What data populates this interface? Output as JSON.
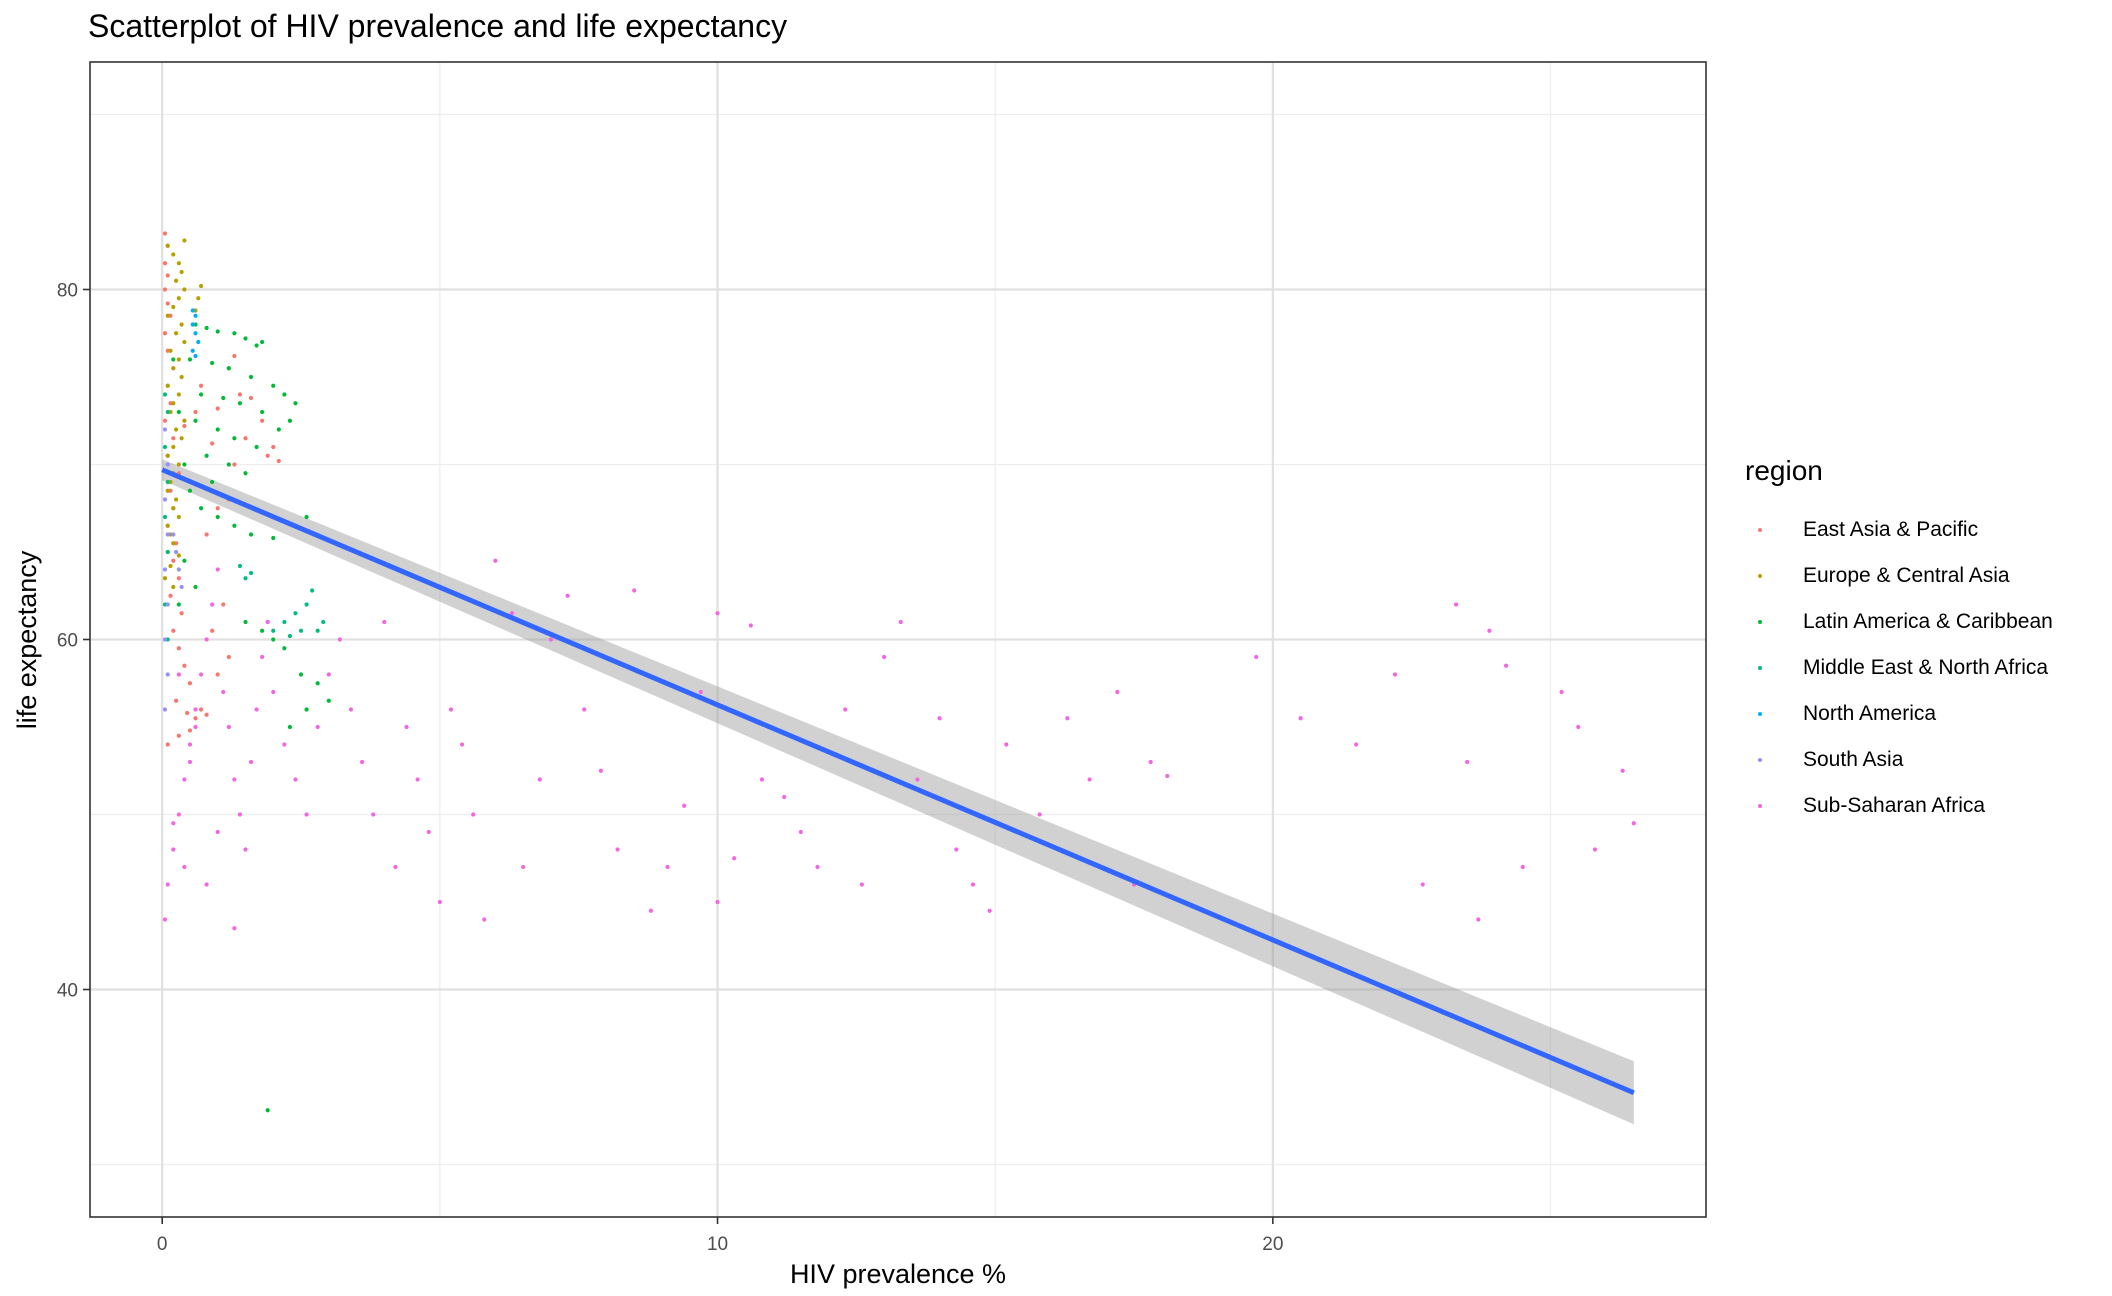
{
  "chart_data": {
    "type": "scatter",
    "title": "Scatterplot of HIV prevalence and life expectancy",
    "xlabel": "HIV prevalence %",
    "ylabel": "life expectancy",
    "xlim": [
      -1.3,
      27.8
    ],
    "ylim": [
      27,
      93
    ],
    "x_ticks": [
      0,
      10,
      20
    ],
    "y_ticks": [
      40,
      60,
      80
    ],
    "grid": true,
    "legend_title": "region",
    "legend_position": "right",
    "series": [
      {
        "name": "East Asia & Pacific",
        "color": "#F8766D",
        "points": [
          [
            0.05,
            83.2
          ],
          [
            0.1,
            82.5
          ],
          [
            0.05,
            81.5
          ],
          [
            0.1,
            80.8
          ],
          [
            0.05,
            80
          ],
          [
            0.1,
            79.2
          ],
          [
            0.15,
            78.5
          ],
          [
            0.05,
            77.5
          ],
          [
            0.1,
            76.5
          ],
          [
            0.2,
            75.5
          ],
          [
            0.1,
            74.5
          ],
          [
            0.15,
            73.5
          ],
          [
            0.05,
            72.5
          ],
          [
            0.2,
            71.5
          ],
          [
            0.1,
            70.5
          ],
          [
            0.3,
            69.5
          ],
          [
            0.15,
            68.5
          ],
          [
            0.2,
            67.5
          ],
          [
            0.1,
            66.5
          ],
          [
            0.25,
            65.5
          ],
          [
            0.2,
            64.5
          ],
          [
            0.3,
            63.5
          ],
          [
            0.15,
            62.5
          ],
          [
            0.35,
            61.5
          ],
          [
            0.2,
            60.5
          ],
          [
            0.3,
            59.5
          ],
          [
            0.4,
            58.5
          ],
          [
            0.5,
            57.5
          ],
          [
            0.25,
            56.5
          ],
          [
            0.45,
            55.8
          ],
          [
            0.6,
            55.5
          ],
          [
            0.7,
            56
          ],
          [
            0.8,
            55.7
          ],
          [
            0.3,
            54.5
          ],
          [
            0.1,
            54
          ],
          [
            0.5,
            54.8
          ],
          [
            1.0,
            58
          ],
          [
            1.2,
            59
          ],
          [
            0.9,
            60.5
          ],
          [
            1.1,
            62
          ],
          [
            0.8,
            66
          ],
          [
            1.0,
            67.5
          ],
          [
            1.2,
            68
          ],
          [
            1.3,
            70
          ],
          [
            1.5,
            71.5
          ],
          [
            1.8,
            72.5
          ],
          [
            1.9,
            70.5
          ],
          [
            2.0,
            71
          ],
          [
            2.1,
            70.2
          ],
          [
            1.4,
            74
          ],
          [
            1.2,
            75.5
          ],
          [
            1.3,
            76.2
          ],
          [
            1.0,
            73.2
          ],
          [
            1.6,
            73.8
          ],
          [
            0.7,
            74.5
          ],
          [
            0.6,
            73
          ],
          [
            0.4,
            72.2
          ],
          [
            0.9,
            71.2
          ]
        ]
      },
      {
        "name": "Europe & Central Asia",
        "color": "#B79F00",
        "points": [
          [
            0.1,
            82.5
          ],
          [
            0.2,
            82
          ],
          [
            0.3,
            81.5
          ],
          [
            0.4,
            82.8
          ],
          [
            0.35,
            81
          ],
          [
            0.25,
            80.5
          ],
          [
            0.4,
            80
          ],
          [
            0.3,
            79.5
          ],
          [
            0.2,
            79
          ],
          [
            0.1,
            78.5
          ],
          [
            0.35,
            78
          ],
          [
            0.25,
            77.5
          ],
          [
            0.4,
            77
          ],
          [
            0.15,
            76.5
          ],
          [
            0.3,
            76
          ],
          [
            0.2,
            75.5
          ],
          [
            0.35,
            75
          ],
          [
            0.1,
            74.5
          ],
          [
            0.3,
            74
          ],
          [
            0.2,
            73.5
          ],
          [
            0.15,
            73
          ],
          [
            0.4,
            72.5
          ],
          [
            0.25,
            72
          ],
          [
            0.35,
            71.5
          ],
          [
            0.2,
            71
          ],
          [
            0.1,
            70.5
          ],
          [
            0.3,
            70
          ],
          [
            0.2,
            69.5
          ],
          [
            0.15,
            69
          ],
          [
            0.1,
            68.5
          ],
          [
            0.25,
            68
          ],
          [
            0.2,
            67.5
          ],
          [
            0.3,
            67
          ],
          [
            0.1,
            66.5
          ],
          [
            0.15,
            66
          ],
          [
            0.2,
            65.5
          ],
          [
            0.1,
            65
          ],
          [
            0.3,
            64.8
          ],
          [
            0.15,
            64.2
          ],
          [
            0.05,
            63.5
          ],
          [
            0.2,
            63
          ],
          [
            0.7,
            80.2
          ],
          [
            0.65,
            79.5
          ],
          [
            0.6,
            78.8
          ]
        ]
      },
      {
        "name": "Latin America & Caribbean",
        "color": "#00BA38",
        "points": [
          [
            0.6,
            78
          ],
          [
            0.8,
            77.8
          ],
          [
            1.0,
            77.6
          ],
          [
            1.3,
            77.5
          ],
          [
            1.5,
            77.2
          ],
          [
            1.7,
            76.8
          ],
          [
            1.8,
            77
          ],
          [
            0.5,
            76
          ],
          [
            0.9,
            75.8
          ],
          [
            1.2,
            75.5
          ],
          [
            1.6,
            75
          ],
          [
            2.0,
            74.5
          ],
          [
            2.2,
            74
          ],
          [
            2.4,
            73.5
          ],
          [
            2.3,
            72.5
          ],
          [
            2.1,
            72
          ],
          [
            0.7,
            74
          ],
          [
            1.1,
            73.8
          ],
          [
            1.4,
            73.5
          ],
          [
            1.8,
            73
          ],
          [
            0.6,
            72.5
          ],
          [
            1.0,
            72
          ],
          [
            1.3,
            71.5
          ],
          [
            1.7,
            71
          ],
          [
            0.8,
            70.5
          ],
          [
            1.2,
            70
          ],
          [
            1.5,
            69.5
          ],
          [
            0.9,
            69
          ],
          [
            0.5,
            68.5
          ],
          [
            0.7,
            67.5
          ],
          [
            1.0,
            67
          ],
          [
            1.3,
            66.5
          ],
          [
            1.6,
            66
          ],
          [
            2.0,
            65.8
          ],
          [
            2.4,
            66.5
          ],
          [
            2.6,
            67
          ],
          [
            0.4,
            64.5
          ],
          [
            0.6,
            63
          ],
          [
            0.3,
            62
          ],
          [
            1.5,
            61
          ],
          [
            1.8,
            60.5
          ],
          [
            2.0,
            60
          ],
          [
            2.2,
            59.5
          ],
          [
            2.5,
            58
          ],
          [
            2.8,
            57.5
          ],
          [
            3.0,
            56.5
          ],
          [
            2.6,
            56
          ],
          [
            2.3,
            55
          ],
          [
            1.9,
            33.1
          ],
          [
            0.2,
            76
          ],
          [
            0.3,
            73
          ],
          [
            0.4,
            70
          ]
        ]
      },
      {
        "name": "Middle East & North Africa",
        "color": "#00BF7D",
        "points": [
          [
            0.05,
            74
          ],
          [
            0.1,
            73
          ],
          [
            0.05,
            71
          ],
          [
            0.1,
            69
          ],
          [
            0.05,
            67
          ],
          [
            0.1,
            65
          ],
          [
            0.05,
            62
          ],
          [
            0.1,
            60
          ],
          [
            2.2,
            61
          ],
          [
            2.4,
            61.5
          ],
          [
            2.6,
            62
          ],
          [
            2.7,
            62.8
          ],
          [
            2.8,
            60.5
          ],
          [
            2.9,
            61
          ],
          [
            2.5,
            60.5
          ],
          [
            2.3,
            60.2
          ],
          [
            1.9,
            61
          ],
          [
            2.0,
            60.5
          ],
          [
            1.4,
            64.2
          ],
          [
            1.5,
            63.5
          ],
          [
            1.6,
            63.8
          ]
        ]
      },
      {
        "name": "North America",
        "color": "#00B0F6",
        "points": [
          [
            0.55,
            78.8
          ],
          [
            0.6,
            78.5
          ],
          [
            0.55,
            78
          ],
          [
            0.6,
            77.5
          ],
          [
            0.65,
            77
          ],
          [
            0.55,
            76.5
          ],
          [
            0.6,
            76.2
          ]
        ]
      },
      {
        "name": "South Asia",
        "color": "#9590FF",
        "points": [
          [
            0.05,
            72
          ],
          [
            0.1,
            70
          ],
          [
            0.05,
            68
          ],
          [
            0.1,
            66
          ],
          [
            0.05,
            64
          ],
          [
            0.1,
            62
          ],
          [
            0.05,
            60
          ],
          [
            0.1,
            58
          ],
          [
            0.05,
            56
          ],
          [
            0.2,
            66
          ],
          [
            0.25,
            65
          ],
          [
            0.3,
            64
          ],
          [
            0.35,
            63
          ]
        ]
      },
      {
        "name": "Sub-Saharan Africa",
        "color": "#F564E3",
        "points": [
          [
            0.05,
            44
          ],
          [
            0.1,
            46
          ],
          [
            0.2,
            48
          ],
          [
            0.3,
            50
          ],
          [
            0.4,
            52
          ],
          [
            0.5,
            54
          ],
          [
            0.6,
            56
          ],
          [
            0.7,
            58
          ],
          [
            0.8,
            60
          ],
          [
            0.9,
            62
          ],
          [
            1.0,
            64
          ],
          [
            1.1,
            57
          ],
          [
            1.2,
            55
          ],
          [
            1.3,
            52
          ],
          [
            1.4,
            50
          ],
          [
            1.5,
            48
          ],
          [
            1.6,
            53
          ],
          [
            1.7,
            56
          ],
          [
            1.8,
            59
          ],
          [
            1.9,
            61
          ],
          [
            2.0,
            57
          ],
          [
            2.2,
            54
          ],
          [
            2.4,
            52
          ],
          [
            2.6,
            50
          ],
          [
            2.8,
            55
          ],
          [
            3.0,
            58
          ],
          [
            3.2,
            60
          ],
          [
            3.4,
            56
          ],
          [
            3.6,
            53
          ],
          [
            3.8,
            50
          ],
          [
            4.0,
            61
          ],
          [
            4.2,
            47
          ],
          [
            4.4,
            55
          ],
          [
            4.6,
            52
          ],
          [
            4.8,
            49
          ],
          [
            5.0,
            45
          ],
          [
            5.2,
            56
          ],
          [
            5.4,
            54
          ],
          [
            5.6,
            50
          ],
          [
            5.8,
            44
          ],
          [
            6.0,
            64.5
          ],
          [
            6.3,
            61.5
          ],
          [
            6.5,
            47
          ],
          [
            6.8,
            52
          ],
          [
            7.0,
            60
          ],
          [
            7.3,
            62.5
          ],
          [
            7.6,
            56
          ],
          [
            7.9,
            52.5
          ],
          [
            8.2,
            48
          ],
          [
            8.5,
            62.8
          ],
          [
            8.8,
            44.5
          ],
          [
            9.1,
            47
          ],
          [
            9.4,
            50.5
          ],
          [
            9.7,
            57
          ],
          [
            10.0,
            61.5
          ],
          [
            10.0,
            45
          ],
          [
            10.3,
            47.5
          ],
          [
            10.6,
            60.8
          ],
          [
            10.8,
            52
          ],
          [
            11.2,
            51
          ],
          [
            11.5,
            49
          ],
          [
            11.8,
            47
          ],
          [
            12.3,
            56
          ],
          [
            12.6,
            46
          ],
          [
            13.0,
            59
          ],
          [
            13.3,
            61
          ],
          [
            13.6,
            52
          ],
          [
            14.0,
            55.5
          ],
          [
            14.3,
            48
          ],
          [
            14.6,
            46
          ],
          [
            14.9,
            44.5
          ],
          [
            15.2,
            54
          ],
          [
            15.8,
            50
          ],
          [
            16.3,
            55.5
          ],
          [
            16.7,
            52
          ],
          [
            17.2,
            57
          ],
          [
            17.5,
            46
          ],
          [
            17.8,
            53
          ],
          [
            18.1,
            52.2
          ],
          [
            18.4,
            45
          ],
          [
            19.7,
            59
          ],
          [
            20.5,
            55.5
          ],
          [
            21.5,
            54
          ],
          [
            22.2,
            58
          ],
          [
            22.7,
            46
          ],
          [
            23.3,
            62
          ],
          [
            23.5,
            53
          ],
          [
            23.7,
            44
          ],
          [
            23.9,
            60.5
          ],
          [
            24.2,
            58.5
          ],
          [
            24.5,
            47
          ],
          [
            25.2,
            57
          ],
          [
            25.5,
            55
          ],
          [
            25.8,
            48
          ],
          [
            26.3,
            52.5
          ],
          [
            26.5,
            49.5
          ],
          [
            0.2,
            49.5
          ],
          [
            0.4,
            47
          ],
          [
            0.6,
            55
          ],
          [
            0.3,
            58
          ],
          [
            0.5,
            53
          ],
          [
            0.8,
            46
          ],
          [
            1.0,
            49
          ],
          [
            1.3,
            43.5
          ]
        ]
      }
    ],
    "regression_line": {
      "color": "#3366FF",
      "band_color": "#999999",
      "x": [
        0,
        26.5
      ],
      "y": [
        69.7,
        34.1
      ],
      "ci_upper": [
        70.3,
        35.9
      ],
      "ci_lower": [
        69.1,
        32.3
      ]
    }
  }
}
